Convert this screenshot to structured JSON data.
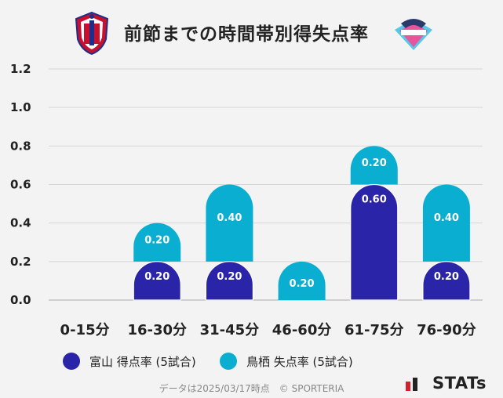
{
  "title": "前節までの時間帯別得失点率",
  "colors": {
    "home": "#2a24a8",
    "away": "#0aaed0",
    "grid": "#d6d6d6",
    "axis": "#cfcfcf"
  },
  "legend": {
    "home_label": "富山 得点率 (5試合)",
    "away_label": "鳥栖 失点率 (5試合)"
  },
  "footer": {
    "note": "データは2025/03/17時点　© SPORTERIA",
    "brand": "STATs"
  },
  "chart_data": {
    "type": "bar",
    "stacked": true,
    "categories": [
      "0-15分",
      "16-30分",
      "31-45分",
      "46-60分",
      "61-75分",
      "76-90分"
    ],
    "series": [
      {
        "name": "富山 得点率 (5試合)",
        "values": [
          0,
          0.2,
          0.2,
          0,
          0.6,
          0.2
        ],
        "labels": [
          "",
          "0.20",
          "0.20",
          "",
          "0.60",
          "0.20"
        ]
      },
      {
        "name": "鳥栖 失点率 (5試合)",
        "values": [
          0,
          0.2,
          0.4,
          0.2,
          0.2,
          0.4
        ],
        "labels": [
          "",
          "0.20",
          "0.40",
          "0.20",
          "0.20",
          "0.40"
        ]
      }
    ],
    "yticks": [
      "0.0",
      "0.2",
      "0.4",
      "0.6",
      "0.8",
      "1.0",
      "1.2"
    ],
    "ylim": [
      0,
      1.2
    ],
    "grid": true
  }
}
